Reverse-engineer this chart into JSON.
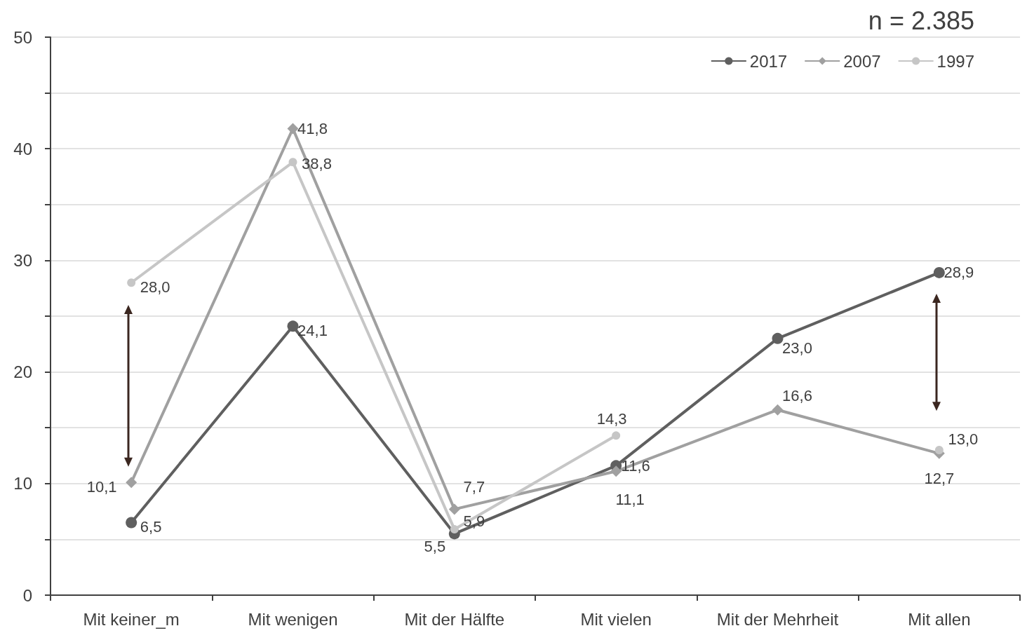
{
  "chart_data": {
    "type": "line",
    "categories": [
      "Mit keiner_m",
      "Mit wenigen",
      "Mit der Hälfte",
      "Mit vielen",
      "Mit der Mehrheit",
      "Mit allen"
    ],
    "series": [
      {
        "name": "2017",
        "color": "#5f5f5f",
        "marker": "circle",
        "values": [
          6.5,
          24.1,
          5.5,
          11.6,
          23.0,
          28.9
        ],
        "value_labels": [
          "6,5",
          "24,1",
          "5,5",
          "11,6",
          "23,0",
          "28,9"
        ]
      },
      {
        "name": "2007",
        "color": "#a0a0a0",
        "marker": "diamond",
        "values": [
          10.1,
          41.8,
          7.7,
          11.1,
          16.6,
          12.7
        ],
        "value_labels": [
          "10,1",
          "41,8",
          "7,7",
          "11,1",
          "16,6",
          "12,7"
        ]
      },
      {
        "name": "1997",
        "color": "#c6c6c6",
        "marker": "circle",
        "values": [
          28.0,
          38.8,
          5.9,
          14.3,
          null,
          13.0
        ],
        "value_labels": [
          "28,0",
          "38,8",
          "5,9",
          "14,3",
          null,
          "13,0"
        ]
      }
    ],
    "ylim": [
      0,
      50
    ],
    "yticks": [
      0,
      10,
      20,
      30,
      40,
      50
    ],
    "grid": "y",
    "legend": "top right",
    "annotations": [
      "n = 2.385"
    ]
  }
}
